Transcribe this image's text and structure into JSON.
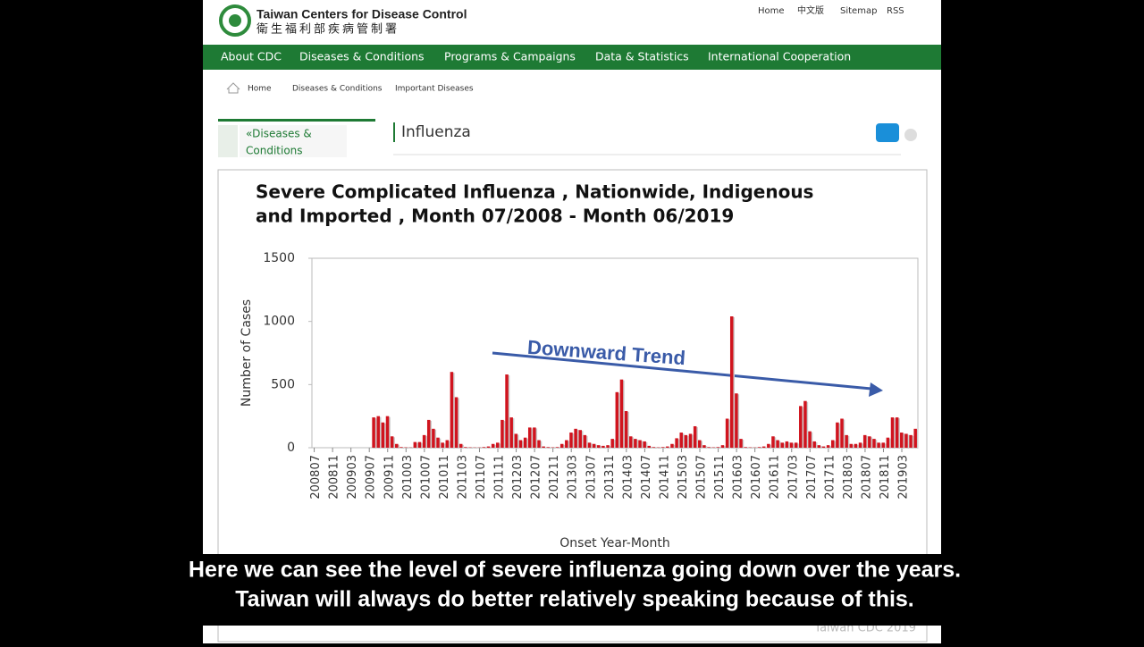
{
  "header": {
    "title": "Taiwan Centers for Disease Control",
    "subtitle": "衛生福利部疾病管制署",
    "links": [
      "Home",
      "中文版",
      "Sitemap",
      "RSS"
    ]
  },
  "nav": [
    "About CDC",
    "Diseases & Conditions",
    "Programs & Campaigns",
    "Data & Statistics",
    "International Cooperation"
  ],
  "breadcrumb": [
    "Home",
    "Diseases & Conditions",
    "Important Diseases"
  ],
  "sidebar": {
    "title_lines": [
      "«Diseases &",
      "Conditions"
    ]
  },
  "page_title": "Influenza",
  "chart_data": {
    "type": "bar",
    "title_lines": [
      "Severe Complicated Influenza , Nationwide, Indigenous",
      "and Imported , Month 07/2008 - Month 06/2019"
    ],
    "ylabel": "Number of Cases",
    "xlabel": "Onset Year-Month",
    "annotation": "Downward Trend",
    "watermark": "Taiwan CDC 2019",
    "color": "#d0141e",
    "ylim": [
      0,
      1500
    ],
    "yticks": [
      0,
      500,
      1000,
      1500
    ],
    "categories": [
      "200807",
      null,
      null,
      null,
      "200811",
      null,
      null,
      null,
      "200903",
      null,
      null,
      null,
      "200907",
      null,
      null,
      null,
      "200911",
      null,
      null,
      null,
      "201003",
      null,
      null,
      null,
      "201007",
      null,
      null,
      null,
      "201011",
      null,
      null,
      null,
      "201103",
      null,
      null,
      null,
      "201107",
      null,
      null,
      null,
      "201111",
      null,
      null,
      null,
      "201203",
      null,
      null,
      null,
      "201207",
      null,
      null,
      null,
      "201211",
      null,
      null,
      null,
      "201303",
      null,
      null,
      null,
      "201307",
      null,
      null,
      null,
      "201311",
      null,
      null,
      null,
      "201403",
      null,
      null,
      null,
      "201407",
      null,
      null,
      null,
      "201411",
      null,
      null,
      null,
      "201503",
      null,
      null,
      null,
      "201507",
      null,
      null,
      null,
      "201511",
      null,
      null,
      null,
      "201603",
      null,
      null,
      null,
      "201607",
      null,
      null,
      null,
      "201611",
      null,
      null,
      null,
      "201703",
      null,
      null,
      null,
      "201707",
      null,
      null,
      null,
      "201711",
      null,
      null,
      null,
      "201803",
      null,
      null,
      null,
      "201807",
      null,
      null,
      null,
      "201811",
      null,
      null,
      null,
      "201903",
      null,
      null,
      null
    ],
    "values": [
      0,
      0,
      0,
      0,
      0,
      0,
      0,
      0,
      0,
      0,
      0,
      0,
      0,
      240,
      250,
      200,
      250,
      90,
      30,
      5,
      3,
      2,
      45,
      45,
      100,
      220,
      150,
      80,
      40,
      60,
      600,
      400,
      30,
      5,
      3,
      2,
      2,
      5,
      10,
      30,
      40,
      220,
      580,
      240,
      110,
      60,
      80,
      160,
      160,
      60,
      10,
      5,
      3,
      5,
      30,
      60,
      120,
      150,
      140,
      100,
      40,
      30,
      20,
      15,
      20,
      70,
      440,
      540,
      290,
      90,
      70,
      60,
      50,
      15,
      5,
      3,
      5,
      10,
      30,
      75,
      120,
      100,
      110,
      170,
      60,
      20,
      5,
      3,
      5,
      20,
      230,
      1040,
      430,
      70,
      5,
      3,
      2,
      5,
      10,
      30,
      90,
      60,
      40,
      50,
      40,
      40,
      330,
      370,
      130,
      50,
      20,
      10,
      20,
      60,
      200,
      230,
      100,
      30,
      30,
      40,
      100,
      90,
      70,
      40,
      40,
      80,
      240,
      240,
      120,
      110,
      100,
      150
    ]
  },
  "captions": [
    "Here we can see the level of severe influenza going down over the years.",
    "Taiwan will always do better relatively speaking because of this."
  ]
}
